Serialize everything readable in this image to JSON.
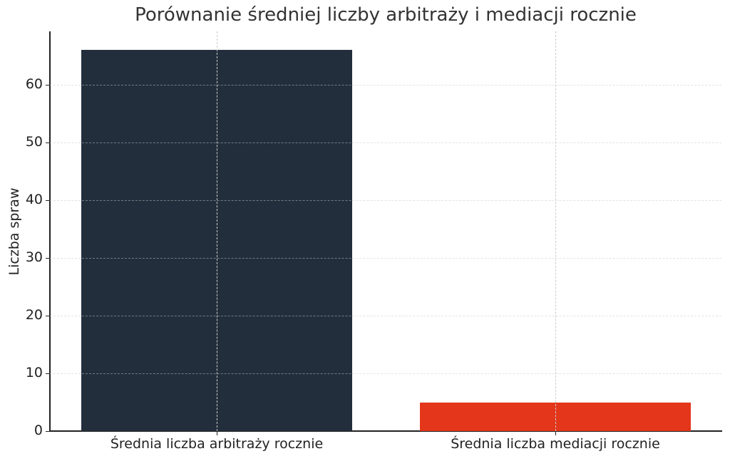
{
  "chart_data": {
    "type": "bar",
    "title": "Porównanie średniej liczby arbitraży i mediacji rocznie",
    "xlabel": "",
    "ylabel": "Liczba spraw",
    "categories": [
      "Średnia liczba arbitraży rocznie",
      "Średnia liczba mediacji rocznie"
    ],
    "values": [
      66,
      5
    ],
    "colors": [
      "#222e3c",
      "#e3361a"
    ],
    "ylim": [
      0,
      69
    ],
    "yticks": [
      "0",
      "10",
      "20",
      "30",
      "40",
      "50",
      "60"
    ],
    "grid": true,
    "grid_style": "dashed",
    "legend": null
  }
}
